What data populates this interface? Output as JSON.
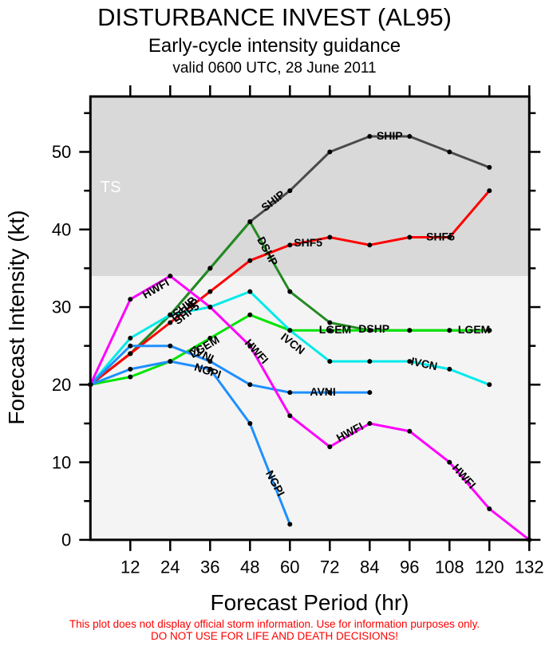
{
  "header": {
    "title": "DISTURBANCE INVEST (AL95)",
    "subtitle": "Early-cycle intensity guidance",
    "valid_line": "valid 0600 UTC, 28 June 2011"
  },
  "axes": {
    "x_label": "Forecast Period (hr)",
    "y_label": "Forecast Intensity (kt)"
  },
  "footer": {
    "disclaimer_line1": "This plot does not display official storm information. Use for information purposes only.",
    "disclaimer_line2": "DO NOT USE FOR LIFE AND DEATH DECISIONS!",
    "disclaimer_color": "#fe0000"
  },
  "chart_data": {
    "type": "line",
    "title": "DISTURBANCE INVEST (AL95)",
    "subtitle": "Early-cycle intensity guidance",
    "valid": "valid 0600 UTC, 28 June 2011",
    "xlabel": "Forecast Period (hr)",
    "ylabel": "Forecast Intensity (kt)",
    "xlim": [
      0,
      132
    ],
    "ylim": [
      0,
      57.14
    ],
    "x_major_ticks": [
      12,
      24,
      36,
      48,
      60,
      72,
      84,
      96,
      108,
      120,
      132
    ],
    "y_major_ticks": [
      0,
      10,
      20,
      30,
      40,
      50
    ],
    "y_minor_ticks": [
      5,
      15,
      25,
      35,
      45,
      55
    ],
    "grid": false,
    "legend": "labels drawn along lines",
    "ts_threshold_kt": 34,
    "band_colors": {
      "above_34kt": "#d9d9d9",
      "below_34kt": "#f4f4f4"
    },
    "point_color": "#000000",
    "series": [
      {
        "name": "SHIP",
        "color": "#4a4a4a",
        "hours": [
          0,
          12,
          24,
          36,
          48,
          60,
          72,
          84,
          96,
          108,
          120
        ],
        "values": [
          20,
          24,
          29,
          35,
          41,
          45,
          50,
          52,
          52,
          50,
          48
        ]
      },
      {
        "name": "DSHP",
        "color": "#228b22",
        "hours": [
          0,
          12,
          24,
          36,
          48,
          60,
          72,
          84,
          96,
          108,
          120
        ],
        "values": [
          20,
          24,
          29,
          35,
          41,
          32,
          28,
          27,
          27,
          27,
          27
        ]
      },
      {
        "name": "SHF5",
        "color": "#ff0000",
        "hours": [
          0,
          12,
          24,
          36,
          48,
          60,
          72,
          84,
          96,
          108,
          120
        ],
        "values": [
          20,
          24,
          28,
          32,
          36,
          38,
          39,
          38,
          39,
          39,
          45
        ]
      },
      {
        "name": "LGEM",
        "color": "#00e400",
        "hours": [
          0,
          12,
          24,
          36,
          48,
          60,
          72,
          84,
          96,
          108,
          120
        ],
        "values": [
          20,
          21,
          23,
          26,
          29,
          27,
          27,
          27,
          27,
          27,
          27
        ]
      },
      {
        "name": "IVCN",
        "color": "#00eaea",
        "hours": [
          0,
          12,
          24,
          36,
          48,
          60,
          72,
          84,
          96,
          108,
          120
        ],
        "values": [
          20,
          26,
          29,
          30,
          32,
          27,
          23,
          23,
          23,
          22,
          20
        ]
      },
      {
        "name": "NGPI",
        "color": "#1e8fff",
        "hours": [
          0,
          12,
          24,
          36,
          48,
          60
        ],
        "values": [
          20,
          22,
          23,
          22,
          15,
          2
        ]
      },
      {
        "name": "AVNI",
        "color": "#1e8fff",
        "hours": [
          0,
          12,
          24,
          36,
          48,
          60,
          72,
          84
        ],
        "values": [
          20,
          25,
          25,
          23,
          20,
          19,
          19,
          19
        ]
      },
      {
        "name": "HWFI",
        "color": "#ff00ff",
        "hours": [
          0,
          12,
          24,
          36,
          48,
          60,
          72,
          84,
          96,
          108,
          120,
          132
        ],
        "values": [
          20,
          31,
          34,
          30,
          25,
          16,
          12,
          15,
          14,
          10,
          4,
          0
        ]
      }
    ],
    "line_labels": [
      {
        "text": "SHIP",
        "hr": 54.9,
        "kt": 43.7,
        "rot": -38
      },
      {
        "text": "SHIP",
        "hr": 90.0,
        "kt": 52.1,
        "rot": 0
      },
      {
        "text": "SHIP",
        "hr": 28.2,
        "kt": 30.0,
        "rot": -38
      },
      {
        "text": "DSHP",
        "hr": 53.3,
        "kt": 37.2,
        "rot": 62
      },
      {
        "text": "DSHP",
        "hr": 85.3,
        "kt": 27.2,
        "rot": 0
      },
      {
        "text": "DSHP",
        "hr": 28.5,
        "kt": 29.6,
        "rot": -38
      },
      {
        "text": "SHF5",
        "hr": 65.5,
        "kt": 38.3,
        "rot": 0
      },
      {
        "text": "SHF5",
        "hr": 105.3,
        "kt": 39.1,
        "rot": 0
      },
      {
        "text": "SHF5",
        "hr": 28.9,
        "kt": 29.2,
        "rot": -38
      },
      {
        "text": "LGEM",
        "hr": 34.3,
        "kt": 24.9,
        "rot": -31
      },
      {
        "text": "LGEM",
        "hr": 73.6,
        "kt": 27.1,
        "rot": 0
      },
      {
        "text": "LGEM",
        "hr": 115.4,
        "kt": 27.1,
        "rot": 0
      },
      {
        "text": "IVCN",
        "hr": 60.9,
        "kt": 25.3,
        "rot": 38
      },
      {
        "text": "IVCN",
        "hr": 100.4,
        "kt": 22.7,
        "rot": 12
      },
      {
        "text": "AVNI",
        "hr": 33.4,
        "kt": 24.0,
        "rot": 26
      },
      {
        "text": "AVNI",
        "hr": 69.9,
        "kt": 19.1,
        "rot": 0
      },
      {
        "text": "NGPI",
        "hr": 35.3,
        "kt": 21.8,
        "rot": 18
      },
      {
        "text": "NGPI",
        "hr": 55.6,
        "kt": 7.3,
        "rot": 62
      },
      {
        "text": "HWFI",
        "hr": 19.6,
        "kt": 32.4,
        "rot": -30
      },
      {
        "text": "HWFI",
        "hr": 50.0,
        "kt": 24.3,
        "rot": 48
      },
      {
        "text": "HWFI",
        "hr": 78.0,
        "kt": 13.9,
        "rot": -28
      },
      {
        "text": "HWFI",
        "hr": 112.4,
        "kt": 8.2,
        "rot": 48
      }
    ],
    "annotations": [
      {
        "text": "TS",
        "hr": 6.1,
        "kt": 45.5,
        "color": "#ffffff"
      }
    ]
  }
}
